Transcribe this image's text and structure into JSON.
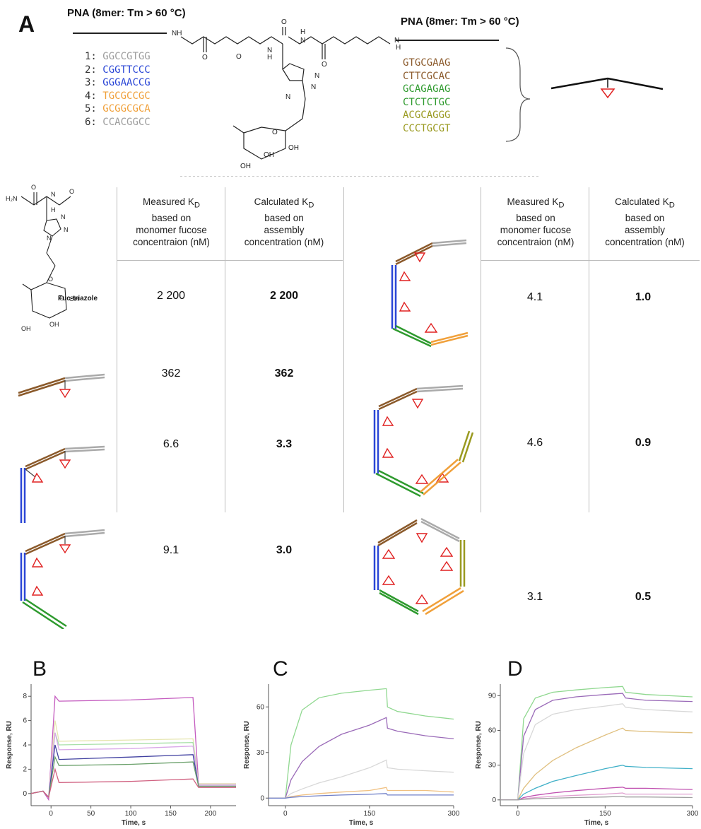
{
  "panel_labels": {
    "a": "A",
    "b": "B",
    "c": "C",
    "d": "D"
  },
  "pna_left": "PNA (8mer: Tm > 60 °C)",
  "pna_right": "PNA (8mer: Tm > 60 °C)",
  "left_sequences": [
    {
      "num": "1:",
      "seq": "GGCCGTGG",
      "color": "#9e9e9e"
    },
    {
      "num": "2:",
      "seq": "CGGTTCCC",
      "color": "#2a46d6"
    },
    {
      "num": "3:",
      "seq": "GGGAACCG",
      "color": "#2a46d6"
    },
    {
      "num": "4:",
      "seq": "TGCGCCGC",
      "color": "#f0a03a"
    },
    {
      "num": "5:",
      "seq": "GCGGCGCA",
      "color": "#f0a03a"
    },
    {
      "num": "6:",
      "seq": "CCACGGCC",
      "color": "#9e9e9e"
    }
  ],
  "right_sequences": [
    {
      "seq": "GTGCGAAG",
      "color": "#8b5a2b"
    },
    {
      "seq": "CTTCGCAC",
      "color": "#8b5a2b"
    },
    {
      "seq": "GCAGAGAG",
      "color": "#2e9a2e"
    },
    {
      "seq": "CTCTCTGC",
      "color": "#2e9a2e"
    },
    {
      "seq": "ACGCAGGG",
      "color": "#9a9a20"
    },
    {
      "seq": "CCCTGCGT",
      "color": "#9a9a20"
    }
  ],
  "structure_labels": {
    "fuc_triazole": "Fuc-triazole",
    "oh": "OH",
    "h2n": "H₂N",
    "n": "N",
    "h": "H",
    "o": "O"
  },
  "table": {
    "header_measured": [
      "Measured K",
      "based on",
      "monomer fucose",
      "concentraion (nM)"
    ],
    "header_calculated": [
      "Calculated K",
      "based on",
      "assembly",
      "concentration (nM)"
    ],
    "subscript": "D",
    "left_rows": [
      {
        "measured": "2 200",
        "calculated": "2 200"
      },
      {
        "measured": "362",
        "calculated": "362"
      },
      {
        "measured": "6.6",
        "calculated": "3.3"
      },
      {
        "measured": "9.1",
        "calculated": "3.0"
      }
    ],
    "right_rows": [
      {
        "measured": "4.1",
        "calculated": "1.0"
      },
      {
        "measured": "4.6",
        "calculated": "0.9"
      },
      {
        "measured": "3.1",
        "calculated": "0.5"
      }
    ]
  },
  "chart_data": [
    {
      "panel": "B",
      "type": "line",
      "xlabel": "Time, s",
      "ylabel": "Response, RU",
      "xlim": [
        -25,
        232
      ],
      "ylim": [
        -1,
        9
      ],
      "xticks": [
        0,
        50,
        100,
        150,
        200
      ],
      "yticks": [
        0,
        2,
        4,
        6,
        8
      ],
      "series": [
        {
          "color": "#c45bbf",
          "x": [
            -25,
            -10,
            -3,
            5,
            10,
            100,
            178,
            185,
            200,
            232
          ],
          "y": [
            0,
            0.2,
            -0.5,
            8,
            7.6,
            7.7,
            7.9,
            0.8,
            0.8,
            0.8
          ]
        },
        {
          "color": "#e6e6b0",
          "x": [
            -25,
            -10,
            -3,
            5,
            10,
            100,
            178,
            185,
            200,
            232
          ],
          "y": [
            0,
            0.2,
            -0.3,
            6,
            4.3,
            4.4,
            4.5,
            0.8,
            0.8,
            0.8
          ]
        },
        {
          "color": "#a8e0a8",
          "x": [
            -25,
            -10,
            -3,
            5,
            10,
            100,
            178,
            185,
            200,
            232
          ],
          "y": [
            0,
            0.2,
            -0.3,
            5,
            4.0,
            4.1,
            4.2,
            0.7,
            0.7,
            0.7
          ]
        },
        {
          "color": "#d8a8e8",
          "x": [
            -25,
            -10,
            -3,
            5,
            10,
            100,
            178,
            185,
            200,
            232
          ],
          "y": [
            0,
            0.2,
            -0.3,
            5,
            3.6,
            3.7,
            3.9,
            0.7,
            0.7,
            0.7
          ]
        },
        {
          "color": "#4040a0",
          "x": [
            -25,
            -10,
            -3,
            5,
            10,
            100,
            178,
            185,
            200,
            232
          ],
          "y": [
            0,
            0.2,
            -0.3,
            4,
            2.8,
            3.0,
            3.2,
            0.6,
            0.6,
            0.6
          ]
        },
        {
          "color": "#6aa06a",
          "x": [
            -25,
            -10,
            -3,
            5,
            10,
            100,
            178,
            185,
            200,
            232
          ],
          "y": [
            0,
            0.2,
            -0.3,
            3,
            2.3,
            2.4,
            2.6,
            0.6,
            0.6,
            0.6
          ]
        },
        {
          "color": "#d06080",
          "x": [
            -25,
            -10,
            -3,
            5,
            10,
            100,
            178,
            185,
            200,
            232
          ],
          "y": [
            0,
            0.2,
            -0.3,
            2,
            0.9,
            1.0,
            1.2,
            0.5,
            0.5,
            0.5
          ]
        }
      ]
    },
    {
      "panel": "C",
      "type": "line",
      "xlabel": "Time, s",
      "ylabel": "Response, RU",
      "xlim": [
        -30,
        300
      ],
      "ylim": [
        -5,
        75
      ],
      "xticks": [
        0,
        150,
        300
      ],
      "yticks": [
        0,
        30,
        60
      ],
      "series": [
        {
          "color": "#90d890",
          "x": [
            -30,
            0,
            10,
            30,
            60,
            100,
            150,
            180,
            182,
            200,
            250,
            300
          ],
          "y": [
            0,
            0,
            35,
            58,
            66,
            69,
            71,
            72,
            60,
            57,
            54,
            52
          ]
        },
        {
          "color": "#9a6ab8",
          "x": [
            -30,
            0,
            10,
            30,
            60,
            100,
            150,
            180,
            182,
            200,
            250,
            300
          ],
          "y": [
            0,
            0,
            12,
            24,
            34,
            42,
            48,
            53,
            46,
            44,
            41,
            39
          ]
        },
        {
          "color": "#d8d8d8",
          "x": [
            -30,
            0,
            10,
            30,
            60,
            100,
            150,
            180,
            182,
            200,
            250,
            300
          ],
          "y": [
            0,
            0,
            3,
            6,
            10,
            14,
            20,
            25,
            20,
            19,
            18,
            17
          ]
        },
        {
          "color": "#f0c080",
          "x": [
            -30,
            0,
            10,
            30,
            60,
            100,
            150,
            180,
            182,
            200,
            250,
            300
          ],
          "y": [
            0,
            0,
            1,
            2,
            3,
            4,
            5,
            7,
            5,
            5,
            5,
            4
          ]
        },
        {
          "color": "#7080c8",
          "x": [
            -30,
            0,
            10,
            30,
            60,
            100,
            150,
            180,
            182,
            200,
            250,
            300
          ],
          "y": [
            0,
            0,
            0.5,
            1,
            1.5,
            2,
            2.5,
            3,
            2,
            2,
            2,
            2
          ]
        }
      ]
    },
    {
      "panel": "D",
      "type": "line",
      "xlabel": "Time, s",
      "ylabel": "Response, RU",
      "xlim": [
        -30,
        300
      ],
      "ylim": [
        -5,
        100
      ],
      "xticks": [
        0,
        150,
        300
      ],
      "yticks": [
        0,
        30,
        60,
        90
      ],
      "series": [
        {
          "color": "#90d890",
          "x": [
            -30,
            0,
            10,
            30,
            60,
            100,
            150,
            180,
            185,
            220,
            300
          ],
          "y": [
            0,
            0,
            70,
            88,
            93,
            95,
            97,
            98,
            93,
            91,
            89
          ]
        },
        {
          "color": "#9a6ab8",
          "x": [
            -30,
            0,
            10,
            30,
            60,
            100,
            150,
            180,
            185,
            220,
            300
          ],
          "y": [
            0,
            0,
            55,
            78,
            86,
            89,
            91,
            92,
            88,
            86,
            85
          ]
        },
        {
          "color": "#d8d8d8",
          "x": [
            -30,
            0,
            10,
            30,
            60,
            100,
            150,
            180,
            185,
            220,
            300
          ],
          "y": [
            0,
            0,
            40,
            65,
            74,
            78,
            81,
            83,
            80,
            78,
            76
          ]
        },
        {
          "color": "#e0c080",
          "x": [
            -30,
            0,
            10,
            30,
            60,
            100,
            150,
            180,
            185,
            220,
            300
          ],
          "y": [
            0,
            0,
            10,
            22,
            34,
            45,
            56,
            62,
            60,
            59,
            58
          ]
        },
        {
          "color": "#40b0c8",
          "x": [
            -30,
            0,
            10,
            30,
            60,
            100,
            150,
            180,
            185,
            220,
            300
          ],
          "y": [
            0,
            0,
            5,
            10,
            16,
            21,
            27,
            30,
            29,
            28,
            27
          ]
        },
        {
          "color": "#c050b0",
          "x": [
            -30,
            0,
            10,
            30,
            60,
            100,
            150,
            180,
            185,
            220,
            300
          ],
          "y": [
            0,
            0,
            2,
            4,
            6,
            8,
            10,
            11,
            10,
            10,
            9
          ]
        },
        {
          "color": "#e0a0d0",
          "x": [
            -30,
            0,
            10,
            30,
            60,
            100,
            150,
            180,
            185,
            220,
            300
          ],
          "y": [
            0,
            0,
            1,
            2,
            3,
            4,
            5,
            6,
            5,
            5,
            5
          ]
        },
        {
          "color": "#a0a0a0",
          "x": [
            -30,
            0,
            10,
            30,
            60,
            100,
            150,
            180,
            185,
            220,
            300
          ],
          "y": [
            0,
            0,
            0.5,
            1,
            1.5,
            2,
            2.5,
            3,
            2.5,
            2.5,
            2
          ]
        }
      ]
    }
  ]
}
